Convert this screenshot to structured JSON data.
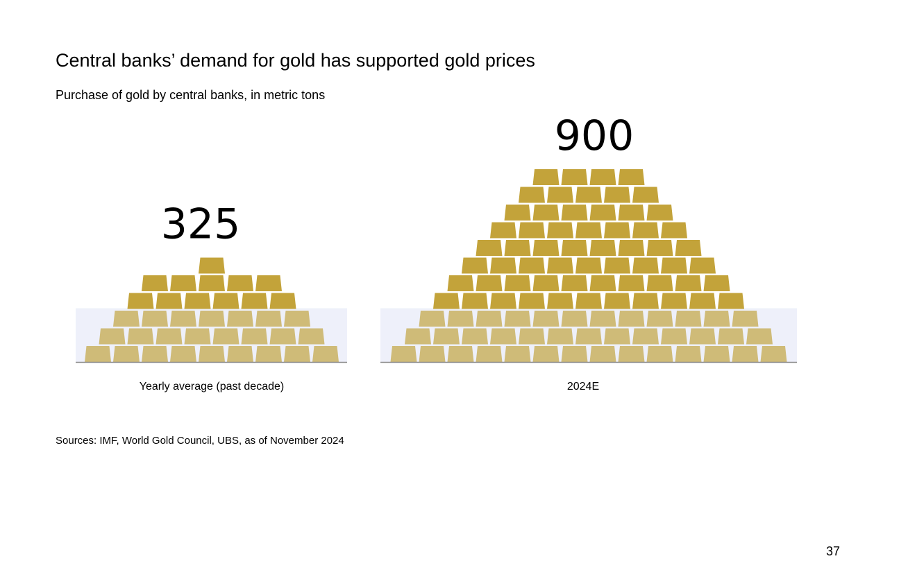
{
  "title": "Central banks’ demand for gold has supported gold prices",
  "subtitle": "Purchase of gold by central banks, in metric tons",
  "source": "Sources: IMF, World Gold Council, UBS, as of November 2024",
  "page_number": "37",
  "colors": {
    "bar_gold": "#c3a33a",
    "bar_light": "#cfbb78",
    "highlight_band": "#eef0fa",
    "baseline": "#8a8a8a"
  },
  "chart_data": {
    "type": "bar",
    "categories": [
      "Yearly average (past decade)",
      "2024E"
    ],
    "values": [
      325,
      900
    ],
    "value_labels": [
      "325",
      "900"
    ]
  }
}
